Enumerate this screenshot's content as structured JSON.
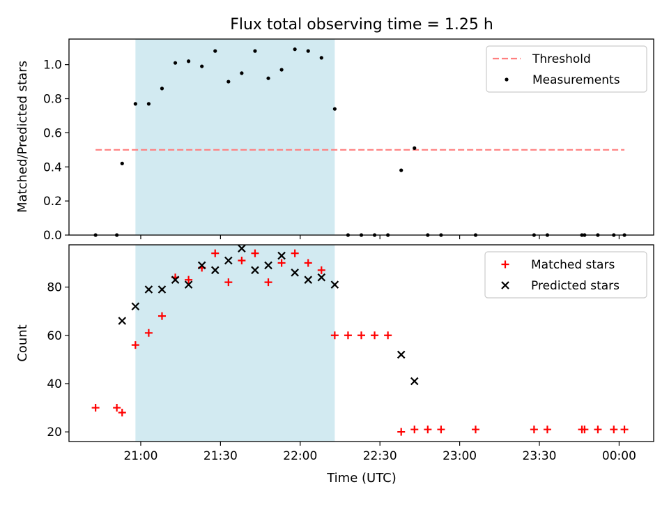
{
  "figure": {
    "title": "Flux total observing time = 1.25 h",
    "xlabel": "Time (UTC)"
  },
  "colors": {
    "shade": "#add8e6",
    "threshold": "#ff7f7f",
    "measurement": "#000000",
    "matched": "#ff0000",
    "predicted": "#000000"
  },
  "chart_data": [
    {
      "type": "scatter",
      "panel": "top",
      "ylabel": "Matched/Predicted stars",
      "xlim": [
        "20:33",
        "00:13"
      ],
      "ylim": [
        0,
        1.15
      ],
      "xticks": [
        "21:00",
        "21:30",
        "22:00",
        "22:30",
        "23:00",
        "23:30",
        "00:00"
      ],
      "yticks": [
        "0.0",
        "0.2",
        "0.4",
        "0.6",
        "0.8",
        "1.0"
      ],
      "yticks_values": [
        0,
        0.2,
        0.4,
        0.6,
        0.8,
        1.0
      ],
      "shaded_region": [
        "20:58",
        "22:13"
      ],
      "threshold": {
        "name": "Threshold",
        "y": 0.5,
        "x": [
          "20:43",
          "00:02"
        ],
        "style": "dashed"
      },
      "legend": {
        "position": "top-right",
        "entries": [
          "Threshold",
          "Measurements"
        ]
      },
      "series": [
        {
          "name": "Measurements",
          "marker": "dot",
          "x": [
            "20:43",
            "20:51",
            "20:53",
            "20:58",
            "21:03",
            "21:08",
            "21:13",
            "21:18",
            "21:23",
            "21:28",
            "21:33",
            "21:38",
            "21:43",
            "21:48",
            "21:53",
            "21:58",
            "22:03",
            "22:08",
            "22:13",
            "22:18",
            "22:23",
            "22:28",
            "22:33",
            "22:38",
            "22:43",
            "22:48",
            "22:53",
            "23:06",
            "23:28",
            "23:33",
            "23:46",
            "23:47",
            "23:52",
            "23:58",
            "00:02"
          ],
          "y": [
            0,
            0,
            0.42,
            0.77,
            0.77,
            0.86,
            1.01,
            1.02,
            0.99,
            1.08,
            0.9,
            0.95,
            1.08,
            0.92,
            0.97,
            1.09,
            1.08,
            1.04,
            0.74,
            0,
            0,
            0,
            0,
            0.38,
            0.51,
            0,
            0,
            0,
            0,
            0,
            0,
            0,
            0,
            0,
            0
          ]
        }
      ]
    },
    {
      "type": "scatter",
      "panel": "bottom",
      "ylabel": "Count",
      "xlim": [
        "20:33",
        "00:13"
      ],
      "ylim": [
        16,
        97.5
      ],
      "xticks": [
        "21:00",
        "21:30",
        "22:00",
        "22:30",
        "23:00",
        "23:30",
        "00:00"
      ],
      "yticks": [
        "20",
        "40",
        "60",
        "80"
      ],
      "yticks_values": [
        20,
        40,
        60,
        80
      ],
      "shaded_region": [
        "20:58",
        "22:13"
      ],
      "legend": {
        "position": "top-right",
        "entries": [
          "Matched stars",
          "Predicted stars"
        ]
      },
      "series": [
        {
          "name": "Matched stars",
          "marker": "plus",
          "x": [
            "20:43",
            "20:51",
            "20:53",
            "20:58",
            "21:03",
            "21:08",
            "21:13",
            "21:18",
            "21:23",
            "21:28",
            "21:33",
            "21:38",
            "21:43",
            "21:48",
            "21:53",
            "21:58",
            "22:03",
            "22:08",
            "22:13",
            "22:18",
            "22:23",
            "22:28",
            "22:33",
            "22:38",
            "22:43",
            "22:48",
            "22:53",
            "23:06",
            "23:28",
            "23:33",
            "23:46",
            "23:47",
            "23:52",
            "23:58",
            "00:02"
          ],
          "y": [
            30,
            30,
            28,
            56,
            61,
            68,
            84,
            83,
            88,
            94,
            82,
            91,
            94,
            82,
            90,
            94,
            90,
            87,
            60,
            60,
            60,
            60,
            60,
            20,
            21,
            21,
            21,
            21,
            21,
            21,
            21,
            21,
            21,
            21,
            21
          ]
        },
        {
          "name": "Predicted stars",
          "marker": "x",
          "x": [
            "20:53",
            "20:58",
            "21:03",
            "21:08",
            "21:13",
            "21:18",
            "21:23",
            "21:28",
            "21:33",
            "21:38",
            "21:43",
            "21:48",
            "21:53",
            "21:58",
            "22:03",
            "22:08",
            "22:13",
            "22:38",
            "22:43"
          ],
          "y": [
            66,
            72,
            79,
            79,
            83,
            81,
            89,
            87,
            91,
            96,
            87,
            89,
            93,
            86,
            83,
            84,
            81,
            52,
            41
          ]
        }
      ]
    }
  ]
}
